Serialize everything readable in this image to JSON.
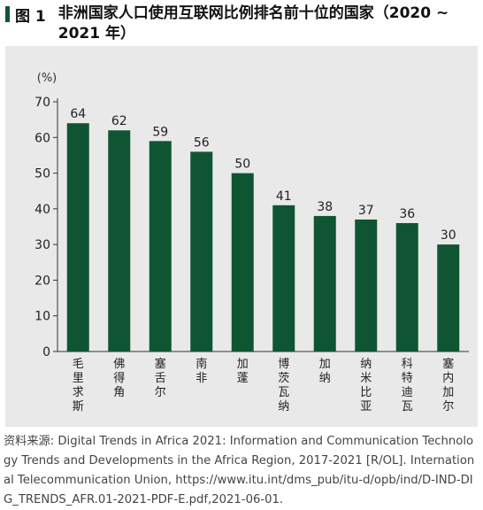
{
  "figure": {
    "label": "图 1",
    "title": "非洲国家人口使用互联网比例排名前十位的国家（2020 ~ 2021 年）"
  },
  "chart_data": {
    "type": "bar",
    "title": "非洲国家人口使用互联网比例排名前十位的国家（2020 ~ 2021 年）",
    "ylabel": "(%)",
    "xlabel": "",
    "categories": [
      "毛里求斯",
      "佛得角",
      "塞舌尔",
      "南非",
      "加蓬",
      "博茨瓦纳",
      "加纳",
      "纳米比亚",
      "科特迪瓦",
      "塞内加尔"
    ],
    "values": [
      64,
      62,
      59,
      56,
      50,
      41,
      38,
      37,
      36,
      30
    ],
    "ylim": [
      0,
      70
    ],
    "yticks": [
      0,
      10,
      20,
      30,
      40,
      50,
      60,
      70
    ],
    "grid": false,
    "legend": "none",
    "bar_color": "#0f5534",
    "background_color": "#e9e9e9"
  },
  "source": {
    "text": "资料来源: Digital Trends in Africa 2021: Information and Communication Technology Trends and Developments in the Africa Region, 2017-2021 [R/OL]. International Telecommunication Union, https://www.itu.int/dms_pub/itu-d/opb/ind/D-IND-DIG_TRENDS_AFR.01-2021-PDF-E.pdf,2021-06-01."
  }
}
